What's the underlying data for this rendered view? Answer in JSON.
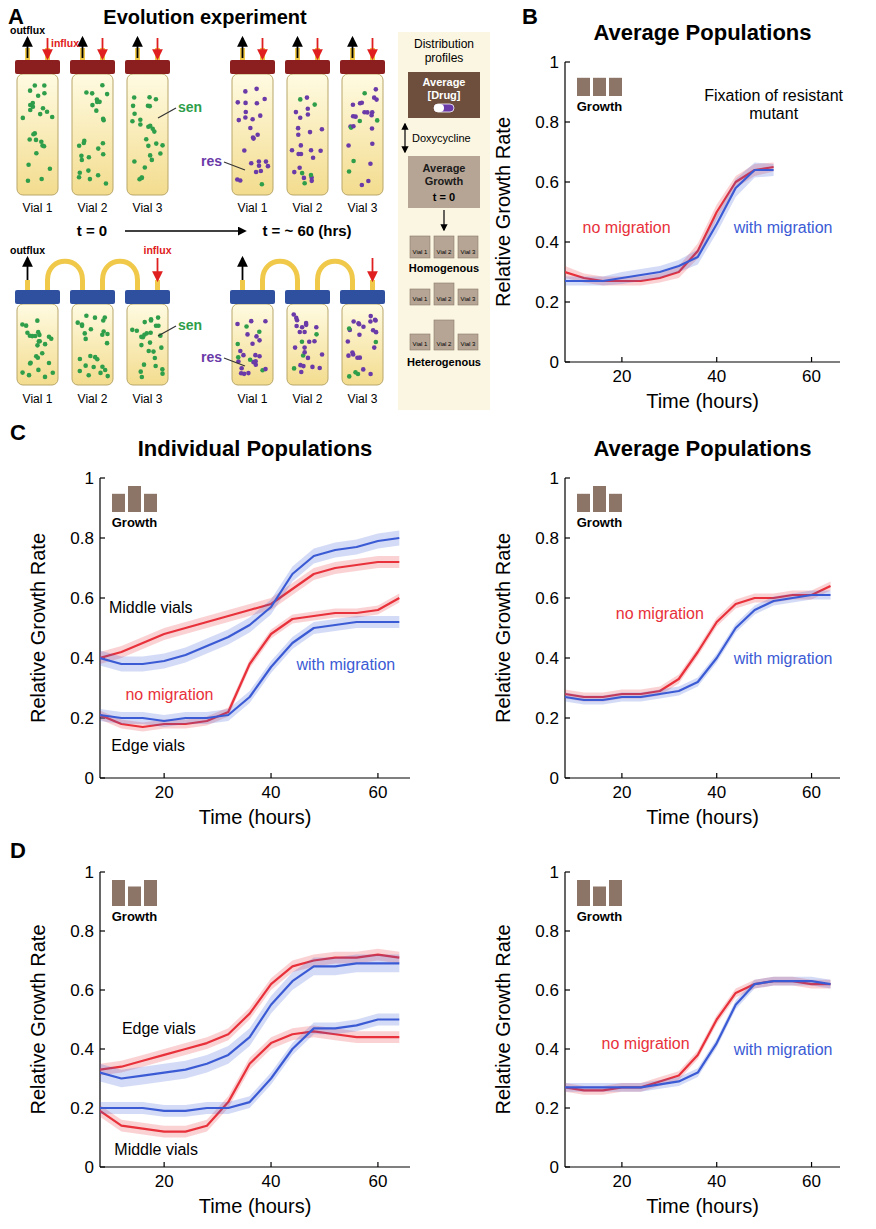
{
  "diagram": {
    "letter": "A",
    "title": "Evolution experiment",
    "outflux": "outflux",
    "influx": "influx",
    "sen": "sen",
    "res": "res",
    "vial_labels": [
      "Vial 1",
      "Vial 2",
      "Vial 3"
    ],
    "time_start": "t = 0",
    "time_end": "t = ~ 60 (hrs)",
    "profiles": {
      "title": "Distribution profiles",
      "drug": "Average [Drug]",
      "drug_name": "Doxycycline",
      "growth": "Average Growth",
      "growth_time": "t = 0",
      "homogenous": "Homogenous",
      "heterogenous": "Heterogenous",
      "box_labels": [
        "Vial 1",
        "Vial 2",
        "Vial 3"
      ]
    }
  },
  "chart_data": [
    {
      "type": "line",
      "panel": "B",
      "title": "Average Populations",
      "x_label": "Time (hours)",
      "y_label": "Relative Growth Rate",
      "x": [
        8,
        12,
        16,
        20,
        24,
        28,
        32,
        36,
        40,
        44,
        48,
        52,
        56,
        60,
        64
      ],
      "xlim": [
        8,
        66
      ],
      "xticks": [
        20,
        40,
        60
      ],
      "ylim": [
        0,
        1
      ],
      "yticks": [
        0,
        0.2,
        0.4,
        0.6,
        0.8,
        1
      ],
      "grid": false,
      "icon_label": "Growth",
      "icon_bars": [
        0.7,
        0.7,
        0.7
      ],
      "series": [
        {
          "color": "#e8313a",
          "values": [
            0.3,
            0.28,
            0.27,
            0.27,
            0.27,
            0.28,
            0.3,
            0.37,
            0.5,
            0.6,
            0.64,
            0.65,
            null,
            null,
            null
          ],
          "errors": [
            0.02,
            0.015,
            0.015,
            0.015,
            0.015,
            0.015,
            0.02,
            0.025,
            0.025,
            0.02,
            0.02,
            0.015,
            null,
            null,
            null
          ]
        },
        {
          "color": "#3b5bd5",
          "values": [
            0.27,
            0.27,
            0.27,
            0.28,
            0.29,
            0.3,
            0.32,
            0.35,
            0.46,
            0.58,
            0.64,
            0.64,
            null,
            null,
            null
          ],
          "errors": [
            0.015,
            0.015,
            0.015,
            0.02,
            0.02,
            0.02,
            0.02,
            0.025,
            0.03,
            0.03,
            0.025,
            0.02,
            null,
            null,
            null
          ]
        }
      ],
      "annotations": [
        {
          "text": "no migration",
          "x": 21,
          "y": 0.45,
          "color": "#e8313a"
        },
        {
          "text": "with migration",
          "x": 54,
          "y": 0.45,
          "color": "#3b5bd5"
        },
        {
          "text": "Fixation of resistant mutant",
          "x": 52,
          "y": 0.86,
          "color": "#000000"
        }
      ]
    },
    {
      "type": "line",
      "panel": "C",
      "title": "Individual Populations",
      "x_label": "Time (hours)",
      "y_label": "Relative Growth Rate",
      "x": [
        8,
        12,
        16,
        20,
        24,
        28,
        32,
        36,
        40,
        44,
        48,
        52,
        56,
        60,
        64
      ],
      "xlim": [
        8,
        66
      ],
      "xticks": [
        20,
        40,
        60
      ],
      "ylim": [
        0,
        1
      ],
      "yticks": [
        0,
        0.2,
        0.4,
        0.6,
        0.8,
        1
      ],
      "grid": false,
      "icon_label": "Growth",
      "icon_bars": [
        0.7,
        1,
        0.7
      ],
      "series": [
        {
          "color": "#e8313a",
          "values": [
            0.4,
            0.42,
            0.45,
            0.48,
            0.5,
            0.52,
            0.54,
            0.56,
            0.58,
            0.63,
            0.68,
            0.7,
            0.71,
            0.72,
            0.72
          ],
          "errors": [
            0.02,
            0.02,
            0.02,
            0.02,
            0.02,
            0.02,
            0.02,
            0.02,
            0.02,
            0.02,
            0.02,
            0.02,
            0.02,
            0.02,
            0.02
          ]
        },
        {
          "color": "#3b5bd5",
          "values": [
            0.4,
            0.38,
            0.38,
            0.39,
            0.41,
            0.44,
            0.47,
            0.51,
            0.57,
            0.68,
            0.74,
            0.76,
            0.77,
            0.79,
            0.8
          ],
          "errors": [
            0.025,
            0.025,
            0.025,
            0.025,
            0.025,
            0.025,
            0.025,
            0.025,
            0.025,
            0.025,
            0.025,
            0.025,
            0.025,
            0.025,
            0.025
          ]
        },
        {
          "color": "#e8313a",
          "values": [
            0.21,
            0.18,
            0.17,
            0.18,
            0.18,
            0.19,
            0.22,
            0.38,
            0.48,
            0.53,
            0.54,
            0.55,
            0.55,
            0.56,
            0.6
          ],
          "errors": [
            0.015,
            0.015,
            0.015,
            0.015,
            0.015,
            0.015,
            0.015,
            0.015,
            0.015,
            0.015,
            0.015,
            0.015,
            0.015,
            0.015,
            0.015
          ]
        },
        {
          "color": "#3b5bd5",
          "values": [
            0.21,
            0.2,
            0.2,
            0.19,
            0.2,
            0.2,
            0.21,
            0.27,
            0.37,
            0.45,
            0.5,
            0.51,
            0.52,
            0.52,
            0.52
          ],
          "errors": [
            0.02,
            0.02,
            0.02,
            0.02,
            0.02,
            0.02,
            0.02,
            0.02,
            0.02,
            0.02,
            0.02,
            0.02,
            0.02,
            0.02,
            0.02
          ]
        }
      ],
      "annotations": [
        {
          "text": "Middle vials",
          "x": 17.5,
          "y": 0.57,
          "color": "#000000"
        },
        {
          "text": "Edge vials",
          "x": 17,
          "y": 0.11,
          "color": "#000000"
        },
        {
          "text": "no migration",
          "x": 21,
          "y": 0.28,
          "color": "#e8313a"
        },
        {
          "text": "with migration",
          "x": 54,
          "y": 0.38,
          "color": "#3b5bd5"
        }
      ]
    },
    {
      "type": "line",
      "title": "Average Populations",
      "x_label": "Time (hours)",
      "y_label": "Relative Growth Rate",
      "x": [
        8,
        12,
        16,
        20,
        24,
        28,
        32,
        36,
        40,
        44,
        48,
        52,
        56,
        60,
        64
      ],
      "xlim": [
        8,
        66
      ],
      "xticks": [
        20,
        40,
        60
      ],
      "ylim": [
        0,
        1
      ],
      "yticks": [
        0,
        0.2,
        0.4,
        0.6,
        0.8,
        1
      ],
      "grid": false,
      "icon_label": "Growth",
      "icon_bars": [
        0.7,
        1,
        0.7
      ],
      "series": [
        {
          "color": "#e8313a",
          "values": [
            0.28,
            0.27,
            0.27,
            0.28,
            0.28,
            0.29,
            0.33,
            0.42,
            0.52,
            0.58,
            0.6,
            0.6,
            0.61,
            0.61,
            0.64
          ],
          "errors": [
            0.015,
            0.015,
            0.015,
            0.015,
            0.015,
            0.015,
            0.015,
            0.015,
            0.015,
            0.015,
            0.015,
            0.015,
            0.015,
            0.015,
            0.015
          ]
        },
        {
          "color": "#3b5bd5",
          "values": [
            0.27,
            0.26,
            0.26,
            0.27,
            0.27,
            0.28,
            0.29,
            0.32,
            0.4,
            0.5,
            0.56,
            0.59,
            0.6,
            0.61,
            0.61
          ],
          "errors": [
            0.015,
            0.015,
            0.015,
            0.015,
            0.015,
            0.015,
            0.015,
            0.015,
            0.015,
            0.015,
            0.015,
            0.015,
            0.015,
            0.015,
            0.015
          ]
        }
      ],
      "annotations": [
        {
          "text": "no migration",
          "x": 28,
          "y": 0.55,
          "color": "#e8313a"
        },
        {
          "text": "with migration",
          "x": 54,
          "y": 0.4,
          "color": "#3b5bd5"
        }
      ]
    },
    {
      "type": "line",
      "panel": "D",
      "x_label": "Time (hours)",
      "y_label": "Relative Growth Rate",
      "x": [
        8,
        12,
        16,
        20,
        24,
        28,
        32,
        36,
        40,
        44,
        48,
        52,
        56,
        60,
        64
      ],
      "xlim": [
        8,
        66
      ],
      "xticks": [
        20,
        40,
        60
      ],
      "ylim": [
        0,
        1
      ],
      "yticks": [
        0,
        0.2,
        0.4,
        0.6,
        0.8,
        1
      ],
      "grid": false,
      "icon_label": "Growth",
      "icon_bars": [
        1,
        0.75,
        1
      ],
      "series": [
        {
          "color": "#e8313a",
          "values": [
            0.33,
            0.34,
            0.36,
            0.38,
            0.4,
            0.42,
            0.45,
            0.52,
            0.62,
            0.68,
            0.7,
            0.71,
            0.71,
            0.72,
            0.71
          ],
          "errors": [
            0.02,
            0.02,
            0.02,
            0.02,
            0.02,
            0.02,
            0.02,
            0.02,
            0.02,
            0.02,
            0.02,
            0.02,
            0.02,
            0.02,
            0.02
          ]
        },
        {
          "color": "#3b5bd5",
          "values": [
            0.32,
            0.3,
            0.31,
            0.32,
            0.33,
            0.35,
            0.38,
            0.44,
            0.55,
            0.63,
            0.68,
            0.68,
            0.69,
            0.69,
            0.69
          ],
          "errors": [
            0.03,
            0.03,
            0.03,
            0.03,
            0.03,
            0.03,
            0.03,
            0.03,
            0.03,
            0.03,
            0.03,
            0.03,
            0.03,
            0.03,
            0.03
          ]
        },
        {
          "color": "#e8313a",
          "values": [
            0.19,
            0.14,
            0.13,
            0.12,
            0.12,
            0.14,
            0.22,
            0.35,
            0.42,
            0.45,
            0.46,
            0.45,
            0.44,
            0.44,
            0.44
          ],
          "errors": [
            0.02,
            0.02,
            0.02,
            0.02,
            0.02,
            0.02,
            0.02,
            0.02,
            0.02,
            0.02,
            0.02,
            0.02,
            0.02,
            0.02,
            0.02
          ]
        },
        {
          "color": "#3b5bd5",
          "values": [
            0.2,
            0.2,
            0.2,
            0.19,
            0.19,
            0.2,
            0.2,
            0.22,
            0.3,
            0.4,
            0.47,
            0.47,
            0.48,
            0.5,
            0.5
          ],
          "errors": [
            0.02,
            0.02,
            0.02,
            0.02,
            0.02,
            0.02,
            0.02,
            0.02,
            0.02,
            0.02,
            0.02,
            0.02,
            0.02,
            0.02,
            0.02
          ]
        }
      ],
      "annotations": [
        {
          "text": "Edge vials",
          "x": 19,
          "y": 0.47,
          "color": "#000000"
        },
        {
          "text": "Middle vials",
          "x": 18.5,
          "y": 0.06,
          "color": "#000000"
        }
      ]
    },
    {
      "type": "line",
      "x_label": "Time (hours)",
      "y_label": "Relative Growth Rate",
      "x": [
        8,
        12,
        16,
        20,
        24,
        28,
        32,
        36,
        40,
        44,
        48,
        52,
        56,
        60,
        64
      ],
      "xlim": [
        8,
        66
      ],
      "xticks": [
        20,
        40,
        60
      ],
      "ylim": [
        0,
        1
      ],
      "yticks": [
        0,
        0.2,
        0.4,
        0.6,
        0.8,
        1
      ],
      "grid": false,
      "icon_label": "Growth",
      "icon_bars": [
        1,
        0.75,
        1
      ],
      "series": [
        {
          "color": "#e8313a",
          "values": [
            0.27,
            0.26,
            0.26,
            0.27,
            0.27,
            0.29,
            0.31,
            0.38,
            0.5,
            0.59,
            0.62,
            0.63,
            0.63,
            0.62,
            0.62
          ],
          "errors": [
            0.015,
            0.015,
            0.015,
            0.015,
            0.015,
            0.015,
            0.015,
            0.015,
            0.015,
            0.015,
            0.015,
            0.015,
            0.015,
            0.015,
            0.015
          ]
        },
        {
          "color": "#3b5bd5",
          "values": [
            0.27,
            0.27,
            0.27,
            0.27,
            0.27,
            0.28,
            0.29,
            0.32,
            0.42,
            0.55,
            0.62,
            0.63,
            0.63,
            0.63,
            0.62
          ],
          "errors": [
            0.015,
            0.015,
            0.015,
            0.015,
            0.015,
            0.015,
            0.015,
            0.015,
            0.015,
            0.015,
            0.015,
            0.015,
            0.015,
            0.015,
            0.015
          ]
        }
      ],
      "annotations": [
        {
          "text": "no migration",
          "x": 25,
          "y": 0.42,
          "color": "#e8313a"
        },
        {
          "text": "with migration",
          "x": 54,
          "y": 0.4,
          "color": "#3b5bd5"
        }
      ]
    }
  ]
}
